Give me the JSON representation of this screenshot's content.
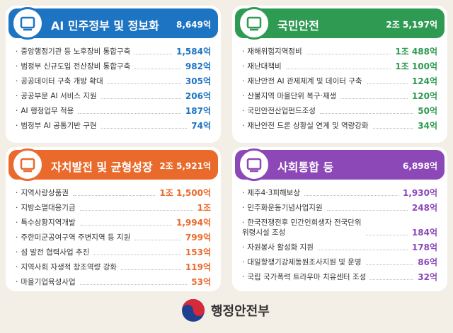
{
  "panels": [
    {
      "title": "AI 민주정부 및 정보화",
      "total": "8,649억",
      "items": [
        {
          "label": "중앙행정기관 등 노후장비 통합구축",
          "amount": "1,584억"
        },
        {
          "label": "범정부 신규도입 전산장비 통합구축",
          "amount": "982억"
        },
        {
          "label": "공공데이터 구축 개방 확대",
          "amount": "305억"
        },
        {
          "label": "공공부문 AI 서비스 지원",
          "amount": "206억"
        },
        {
          "label": "AI 행정업무 적용",
          "amount": "187억"
        },
        {
          "label": "범정부 AI 공통기반 구현",
          "amount": "74억"
        }
      ]
    },
    {
      "title": "국민안전",
      "total": "2조 5,197억",
      "items": [
        {
          "label": "재해위험지역정비",
          "amount": "1조 488억"
        },
        {
          "label": "재난대책비",
          "amount": "1조 100억"
        },
        {
          "label": "재난안전 AI 관제체계 및 데이터 구축",
          "amount": "124억"
        },
        {
          "label": "산불지역 마을단위 복구·재생",
          "amount": "120억"
        },
        {
          "label": "국민안전산업펀드조성",
          "amount": "50억"
        },
        {
          "label": "재난안전 드론 상황실 연계 및 역량강화",
          "amount": "34억"
        }
      ]
    },
    {
      "title": "자치발전 및 균형성장",
      "total": "2조 5,921억",
      "items": [
        {
          "label": "지역사랑상품권",
          "amount": "1조 1,500억"
        },
        {
          "label": "지방소멸대응기금",
          "amount": "1조"
        },
        {
          "label": "특수상황지역개발",
          "amount": "1,994억"
        },
        {
          "label": "주한미군공여구역 주변지역 등 지원",
          "amount": "799억"
        },
        {
          "label": "섬 발전 협력사업 추진",
          "amount": "153억"
        },
        {
          "label": "지역사회 자생적 창조역량 강화",
          "amount": "119억"
        },
        {
          "label": "마을기업육성사업",
          "amount": "53억"
        }
      ]
    },
    {
      "title": "사회통합 등",
      "total": "6,898억",
      "items": [
        {
          "label": "제주4·3피해보상",
          "amount": "1,930억"
        },
        {
          "label": "민주화운동기념사업지원",
          "amount": "248억"
        },
        {
          "label": "한국전쟁전후 민간인희생자 전국단위\n위령시설 조성",
          "amount": "184억"
        },
        {
          "label": "자원봉사 활성화 지원",
          "amount": "178억"
        },
        {
          "label": "대일항쟁기강제동원조사지원 및 운영",
          "amount": "86억"
        },
        {
          "label": "국립 국가폭력 트라우마 치유센터 조성",
          "amount": "32억"
        }
      ]
    }
  ],
  "footer": {
    "org": "행정안전부"
  }
}
